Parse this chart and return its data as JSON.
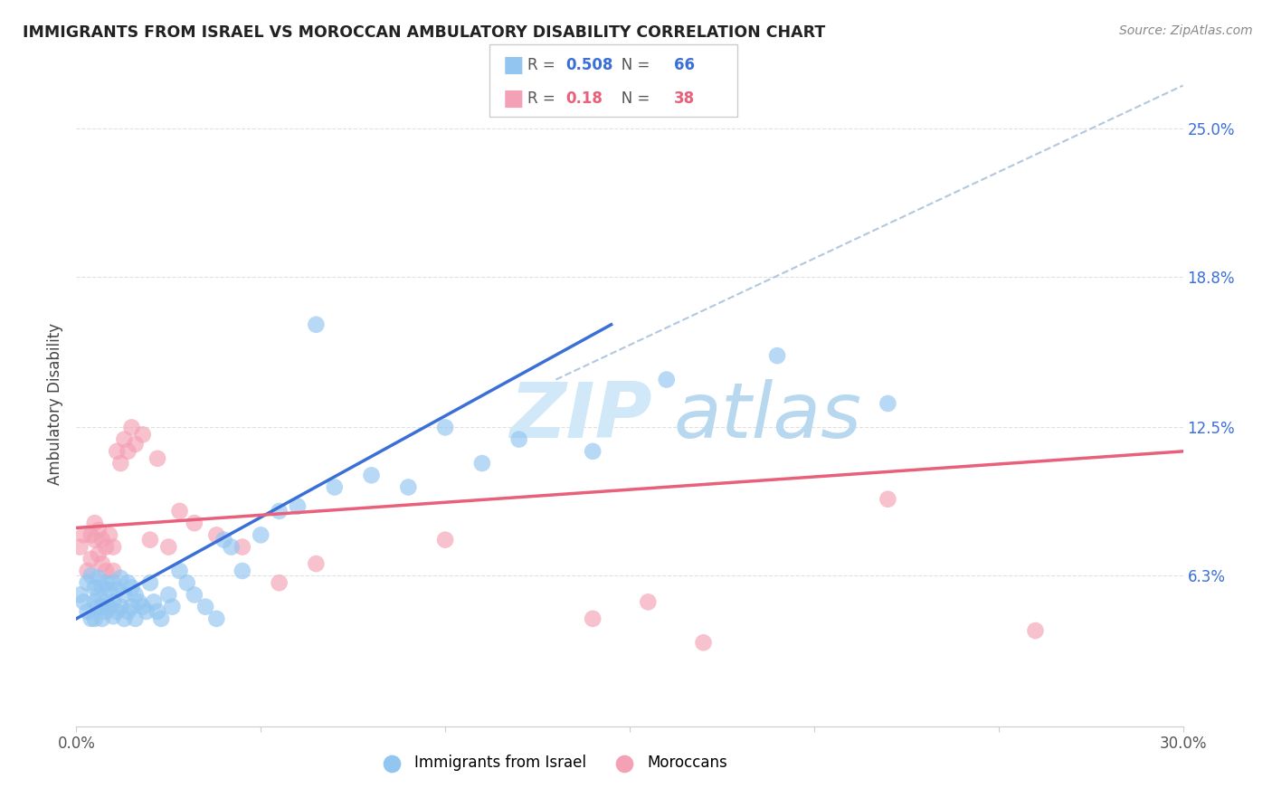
{
  "title": "IMMIGRANTS FROM ISRAEL VS MOROCCAN AMBULATORY DISABILITY CORRELATION CHART",
  "source": "Source: ZipAtlas.com",
  "ylabel": "Ambulatory Disability",
  "xlim": [
    0.0,
    0.3
  ],
  "ylim": [
    0.0,
    0.27
  ],
  "xticks": [
    0.0,
    0.05,
    0.1,
    0.15,
    0.2,
    0.25,
    0.3
  ],
  "xticklabels": [
    "0.0%",
    "",
    "",
    "",
    "",
    "",
    "30.0%"
  ],
  "ytick_positions": [
    0.0,
    0.063,
    0.125,
    0.188,
    0.25
  ],
  "ytick_labels": [
    "",
    "6.3%",
    "12.5%",
    "18.8%",
    "25.0%"
  ],
  "blue_R": 0.508,
  "blue_N": 66,
  "pink_R": 0.18,
  "pink_N": 38,
  "blue_color": "#92c5f0",
  "pink_color": "#f4a0b5",
  "blue_line_color": "#3a6fd8",
  "pink_line_color": "#e8607a",
  "dashed_line_color": "#b0c8e0",
  "watermark_color": "#d0e8f8",
  "grid_color": "#e0e0e0",
  "background_color": "#ffffff",
  "blue_x": [
    0.001,
    0.002,
    0.003,
    0.003,
    0.004,
    0.004,
    0.005,
    0.005,
    0.005,
    0.006,
    0.006,
    0.006,
    0.007,
    0.007,
    0.007,
    0.008,
    0.008,
    0.008,
    0.009,
    0.009,
    0.01,
    0.01,
    0.01,
    0.011,
    0.011,
    0.012,
    0.012,
    0.013,
    0.013,
    0.014,
    0.014,
    0.015,
    0.015,
    0.016,
    0.016,
    0.017,
    0.018,
    0.019,
    0.02,
    0.021,
    0.022,
    0.023,
    0.025,
    0.026,
    0.028,
    0.03,
    0.032,
    0.035,
    0.038,
    0.04,
    0.042,
    0.045,
    0.05,
    0.055,
    0.06,
    0.065,
    0.07,
    0.08,
    0.09,
    0.1,
    0.11,
    0.12,
    0.14,
    0.16,
    0.19,
    0.22
  ],
  "blue_y": [
    0.055,
    0.052,
    0.06,
    0.048,
    0.063,
    0.045,
    0.058,
    0.052,
    0.045,
    0.062,
    0.055,
    0.05,
    0.058,
    0.05,
    0.045,
    0.06,
    0.052,
    0.048,
    0.057,
    0.05,
    0.06,
    0.052,
    0.046,
    0.057,
    0.048,
    0.062,
    0.05,
    0.055,
    0.045,
    0.06,
    0.048,
    0.058,
    0.05,
    0.055,
    0.045,
    0.052,
    0.05,
    0.048,
    0.06,
    0.052,
    0.048,
    0.045,
    0.055,
    0.05,
    0.065,
    0.06,
    0.055,
    0.05,
    0.045,
    0.078,
    0.075,
    0.065,
    0.08,
    0.09,
    0.092,
    0.168,
    0.1,
    0.105,
    0.1,
    0.125,
    0.11,
    0.12,
    0.115,
    0.145,
    0.155,
    0.135
  ],
  "pink_x": [
    0.001,
    0.002,
    0.003,
    0.004,
    0.004,
    0.005,
    0.005,
    0.006,
    0.006,
    0.007,
    0.007,
    0.008,
    0.008,
    0.009,
    0.01,
    0.01,
    0.011,
    0.012,
    0.013,
    0.014,
    0.015,
    0.016,
    0.018,
    0.02,
    0.022,
    0.025,
    0.028,
    0.032,
    0.038,
    0.045,
    0.055,
    0.065,
    0.1,
    0.14,
    0.155,
    0.17,
    0.22,
    0.26
  ],
  "pink_y": [
    0.075,
    0.08,
    0.065,
    0.08,
    0.07,
    0.085,
    0.078,
    0.082,
    0.072,
    0.078,
    0.068,
    0.075,
    0.065,
    0.08,
    0.075,
    0.065,
    0.115,
    0.11,
    0.12,
    0.115,
    0.125,
    0.118,
    0.122,
    0.078,
    0.112,
    0.075,
    0.09,
    0.085,
    0.08,
    0.075,
    0.06,
    0.068,
    0.078,
    0.045,
    0.052,
    0.035,
    0.095,
    0.04
  ],
  "blue_line_x": [
    0.0,
    0.145
  ],
  "blue_line_y": [
    0.045,
    0.168
  ],
  "pink_line_x": [
    0.0,
    0.3
  ],
  "pink_line_y": [
    0.083,
    0.115
  ],
  "dash_line_x": [
    0.13,
    0.3
  ],
  "dash_line_y": [
    0.145,
    0.268
  ]
}
